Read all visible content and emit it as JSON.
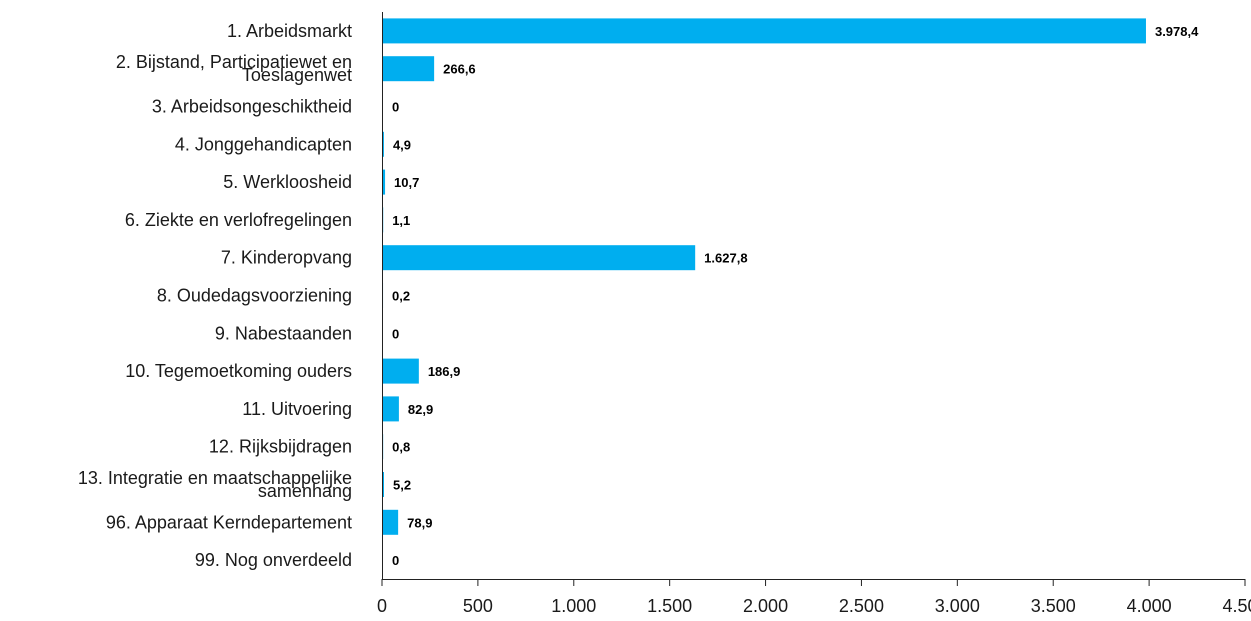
{
  "chart_data": {
    "type": "bar",
    "orientation": "horizontal",
    "categories": [
      [
        "1. Arbeidsmarkt"
      ],
      [
        "2. Bijstand, Participatiewet en",
        "Toeslagenwet"
      ],
      [
        "3. Arbeidsongeschiktheid"
      ],
      [
        "4. Jonggehandicapten"
      ],
      [
        "5. Werkloosheid"
      ],
      [
        "6. Ziekte en verlofregelingen"
      ],
      [
        "7. Kinderopvang"
      ],
      [
        "8. Oudedagsvoorziening"
      ],
      [
        "9. Nabestaanden"
      ],
      [
        "10. Tegemoetkoming ouders"
      ],
      [
        "11. Uitvoering"
      ],
      [
        "12. Rijksbijdragen"
      ],
      [
        "13. Integratie en maatschappelijke",
        "samenhang"
      ],
      [
        "96. Apparaat Kerndepartement"
      ],
      [
        "99. Nog onverdeeld"
      ]
    ],
    "values": [
      3978.4,
      266.6,
      0,
      4.9,
      10.7,
      1.1,
      1627.8,
      0.2,
      0,
      186.9,
      82.9,
      0.8,
      5.2,
      78.9,
      0
    ],
    "value_labels": [
      "3.978,4",
      "266,6",
      "0",
      "4,9",
      "10,7",
      "1,1",
      "1.627,8",
      "0,2",
      "0",
      "186,9",
      "82,9",
      "0,8",
      "5,2",
      "78,9",
      "0"
    ],
    "xlim": [
      0,
      4500
    ],
    "xticks": [
      0,
      500,
      1000,
      1500,
      2000,
      2500,
      3000,
      3500,
      4000,
      4500
    ],
    "xtick_labels": [
      "0",
      "500",
      "1.000",
      "1.500",
      "2.000",
      "2.500",
      "3.000",
      "3.500",
      "4.000",
      "4.500"
    ],
    "title": "",
    "xlabel": "",
    "ylabel": "",
    "grid": false,
    "legend": "none",
    "bar_color": "#00aeef"
  }
}
